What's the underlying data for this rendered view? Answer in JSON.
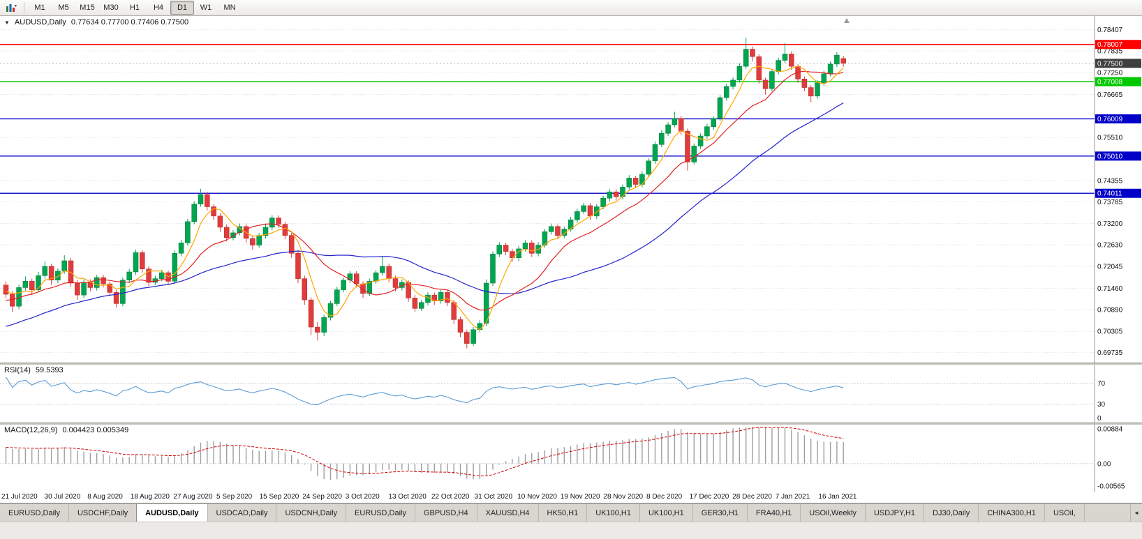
{
  "toolbar": {
    "timeframes": [
      "M1",
      "M5",
      "M15",
      "M30",
      "H1",
      "H4",
      "D1",
      "W1",
      "MN"
    ],
    "active": "D1"
  },
  "chart": {
    "marker": "▼",
    "symbol_label": "AUDUSD,Daily",
    "ohlc_text": "0.77634 0.77700 0.77406 0.77500"
  },
  "rsi": {
    "label": "RSI(14)",
    "value": "59.5393",
    "color": "#5B9BD5",
    "levels": [
      70,
      30
    ],
    "scale_labels": [
      "70",
      "30",
      "0"
    ]
  },
  "macd": {
    "label": "MACD(12,26,9)",
    "values": "0.004423 0.005349",
    "hist_color": "#9E9E9E",
    "signal_color": "#CC0000",
    "scale_labels": [
      "0.00884",
      "0.00",
      "-0.00565"
    ]
  },
  "dates": [
    "21 Jul 2020",
    "30 Jul 2020",
    "8 Aug 2020",
    "18 Aug 2020",
    "27 Aug 2020",
    "5 Sep 2020",
    "15 Sep 2020",
    "24 Sep 2020",
    "3 Oct 2020",
    "13 Oct 2020",
    "22 Oct 2020",
    "31 Oct 2020",
    "10 Nov 2020",
    "19 Nov 2020",
    "28 Nov 2020",
    "8 Dec 2020",
    "17 Dec 2020",
    "28 Dec 2020",
    "7 Jan 2021",
    "16 Jan 2021"
  ],
  "tabs": {
    "active_index": 2,
    "items": [
      "EURUSD,Daily",
      "USDCHF,Daily",
      "AUDUSD,Daily",
      "USDCAD,Daily",
      "USDCNH,Daily",
      "EURUSD,Daily",
      "GBPUSD,H4",
      "XAUUSD,H4",
      "HK50,H1",
      "UK100,H1",
      "UK100,H1",
      "GER30,H1",
      "FRA40,H1",
      "USOil,Weekly",
      "USDJPY,H1",
      "DJ30,Daily",
      "CHINA300,H1",
      "USOil,"
    ],
    "scroll_arrow": "◄"
  },
  "chart_data": {
    "type": "candlestick",
    "symbol": "AUDUSD",
    "timeframe": "Daily",
    "current_ohlc": {
      "open": "0.77634",
      "high": "0.77700",
      "low": "0.77406",
      "close": "0.77500"
    },
    "style": {
      "up": "#00A64F",
      "up_stroke": "#007338",
      "down": "#E03C3C",
      "down_stroke": "#B22222",
      "ma_fast": "#FFA500",
      "ma_mid": "#E02222",
      "ma_slow": "#2222CC",
      "current_box": "#3F3F3F"
    },
    "y_ticks": [
      "0.78407",
      "0.77835",
      "0.77250",
      "0.76665",
      "0.75510",
      "0.74355",
      "0.73785",
      "0.73200",
      "0.72630",
      "0.72045",
      "0.71460",
      "0.70890",
      "0.70305",
      "0.69735"
    ],
    "h_lines": [
      {
        "label": "0.78007",
        "value": 0.78007,
        "color": "#FF0000"
      },
      {
        "label": "0.77008",
        "value": 0.77008,
        "color": "#00C800"
      },
      {
        "label": "0.76009",
        "value": 0.76009,
        "color": "#0000C8"
      },
      {
        "label": "0.75010",
        "value": 0.7501,
        "color": "#0000C8"
      },
      {
        "label": "0.74011",
        "value": 0.74011,
        "color": "#0000C8"
      }
    ],
    "current_price": {
      "label": "0.77500",
      "value": 0.775
    },
    "candles": [
      [
        0.7155,
        0.7165,
        0.712,
        0.713
      ],
      [
        0.713,
        0.7138,
        0.7082,
        0.7098
      ],
      [
        0.7098,
        0.7156,
        0.709,
        0.7148
      ],
      [
        0.7148,
        0.7178,
        0.714,
        0.7165
      ],
      [
        0.7165,
        0.7172,
        0.7128,
        0.7142
      ],
      [
        0.7142,
        0.719,
        0.7135,
        0.718
      ],
      [
        0.718,
        0.7218,
        0.7172,
        0.7205
      ],
      [
        0.7205,
        0.7212,
        0.7155,
        0.7168
      ],
      [
        0.7168,
        0.72,
        0.716,
        0.7192
      ],
      [
        0.7192,
        0.7235,
        0.7185,
        0.722
      ],
      [
        0.722,
        0.7228,
        0.715,
        0.716
      ],
      [
        0.716,
        0.7168,
        0.7115,
        0.7128
      ],
      [
        0.7128,
        0.717,
        0.712,
        0.7162
      ],
      [
        0.7162,
        0.717,
        0.7138,
        0.7148
      ],
      [
        0.7148,
        0.7182,
        0.714,
        0.7175
      ],
      [
        0.7175,
        0.7182,
        0.7148,
        0.7158
      ],
      [
        0.7158,
        0.7165,
        0.7125,
        0.7135
      ],
      [
        0.7135,
        0.7142,
        0.7095,
        0.7105
      ],
      [
        0.7105,
        0.7175,
        0.7098,
        0.7168
      ],
      [
        0.7168,
        0.7198,
        0.716,
        0.719
      ],
      [
        0.719,
        0.725,
        0.7182,
        0.7242
      ],
      [
        0.7242,
        0.7248,
        0.7188,
        0.7198
      ],
      [
        0.7198,
        0.7205,
        0.7152,
        0.7162
      ],
      [
        0.7162,
        0.718,
        0.7155,
        0.7172
      ],
      [
        0.7172,
        0.7196,
        0.7165,
        0.7188
      ],
      [
        0.7188,
        0.7194,
        0.7155,
        0.7165
      ],
      [
        0.7165,
        0.7248,
        0.7158,
        0.724
      ],
      [
        0.724,
        0.7276,
        0.7232,
        0.7268
      ],
      [
        0.7268,
        0.7332,
        0.726,
        0.7325
      ],
      [
        0.7325,
        0.738,
        0.7318,
        0.7372
      ],
      [
        0.7372,
        0.7413,
        0.7365,
        0.7398
      ],
      [
        0.7398,
        0.7405,
        0.7355,
        0.7365
      ],
      [
        0.7365,
        0.7372,
        0.733,
        0.734
      ],
      [
        0.734,
        0.7348,
        0.7298,
        0.731
      ],
      [
        0.731,
        0.7318,
        0.7272,
        0.7282
      ],
      [
        0.7282,
        0.7302,
        0.7275,
        0.7295
      ],
      [
        0.7295,
        0.732,
        0.7288,
        0.7312
      ],
      [
        0.7312,
        0.7318,
        0.7268,
        0.728
      ],
      [
        0.728,
        0.7288,
        0.725,
        0.7262
      ],
      [
        0.7262,
        0.7295,
        0.7255,
        0.7288
      ],
      [
        0.7288,
        0.7318,
        0.728,
        0.731
      ],
      [
        0.731,
        0.7342,
        0.7302,
        0.7335
      ],
      [
        0.7335,
        0.7342,
        0.7308,
        0.7318
      ],
      [
        0.7318,
        0.7325,
        0.7278,
        0.7288
      ],
      [
        0.7288,
        0.7295,
        0.7228,
        0.724
      ],
      [
        0.724,
        0.7248,
        0.716,
        0.7172
      ],
      [
        0.7172,
        0.718,
        0.7102,
        0.7115
      ],
      [
        0.7115,
        0.7122,
        0.702,
        0.7042
      ],
      [
        0.7042,
        0.7055,
        0.7006,
        0.7028
      ],
      [
        0.7028,
        0.7075,
        0.7018,
        0.7068
      ],
      [
        0.7068,
        0.7112,
        0.706,
        0.7105
      ],
      [
        0.7105,
        0.715,
        0.7098,
        0.7142
      ],
      [
        0.7142,
        0.7175,
        0.7135,
        0.7168
      ],
      [
        0.7168,
        0.7192,
        0.716,
        0.7185
      ],
      [
        0.7185,
        0.7192,
        0.7148,
        0.7158
      ],
      [
        0.7158,
        0.7165,
        0.712,
        0.7132
      ],
      [
        0.7132,
        0.7172,
        0.7125,
        0.7165
      ],
      [
        0.7165,
        0.7195,
        0.7158,
        0.7188
      ],
      [
        0.7188,
        0.7232,
        0.718,
        0.7205
      ],
      [
        0.7205,
        0.7212,
        0.7162,
        0.7172
      ],
      [
        0.7172,
        0.718,
        0.7138,
        0.7148
      ],
      [
        0.7148,
        0.717,
        0.714,
        0.7162
      ],
      [
        0.7162,
        0.7168,
        0.711,
        0.712
      ],
      [
        0.712,
        0.7128,
        0.7082,
        0.7092
      ],
      [
        0.7092,
        0.7115,
        0.7085,
        0.7108
      ],
      [
        0.7108,
        0.7135,
        0.71,
        0.7128
      ],
      [
        0.7128,
        0.7135,
        0.7102,
        0.7112
      ],
      [
        0.7112,
        0.7142,
        0.7105,
        0.7135
      ],
      [
        0.7135,
        0.7142,
        0.7098,
        0.7108
      ],
      [
        0.7108,
        0.7115,
        0.705,
        0.7062
      ],
      [
        0.7062,
        0.707,
        0.7015,
        0.7028
      ],
      [
        0.7028,
        0.7035,
        0.6985,
        0.6998
      ],
      [
        0.6998,
        0.7042,
        0.6991,
        0.7035
      ],
      [
        0.7035,
        0.706,
        0.7028,
        0.7052
      ],
      [
        0.7052,
        0.717,
        0.7045,
        0.716
      ],
      [
        0.716,
        0.7245,
        0.7152,
        0.7238
      ],
      [
        0.7238,
        0.727,
        0.723,
        0.7262
      ],
      [
        0.7262,
        0.7268,
        0.7235,
        0.7245
      ],
      [
        0.7245,
        0.7252,
        0.7218,
        0.7228
      ],
      [
        0.7228,
        0.726,
        0.722,
        0.7252
      ],
      [
        0.7252,
        0.7275,
        0.7245,
        0.7268
      ],
      [
        0.7268,
        0.7275,
        0.723,
        0.724
      ],
      [
        0.724,
        0.727,
        0.7232,
        0.7262
      ],
      [
        0.7262,
        0.7305,
        0.7255,
        0.7298
      ],
      [
        0.7298,
        0.732,
        0.729,
        0.7312
      ],
      [
        0.7312,
        0.7318,
        0.7278,
        0.7288
      ],
      [
        0.7288,
        0.7312,
        0.728,
        0.7305
      ],
      [
        0.7305,
        0.7338,
        0.7298,
        0.733
      ],
      [
        0.733,
        0.736,
        0.7322,
        0.7352
      ],
      [
        0.7352,
        0.7375,
        0.7345,
        0.7368
      ],
      [
        0.7368,
        0.7375,
        0.733,
        0.734
      ],
      [
        0.734,
        0.7372,
        0.7332,
        0.7365
      ],
      [
        0.7365,
        0.7395,
        0.7358,
        0.7388
      ],
      [
        0.7388,
        0.7412,
        0.738,
        0.7405
      ],
      [
        0.7405,
        0.7412,
        0.7382,
        0.7392
      ],
      [
        0.7392,
        0.7425,
        0.7385,
        0.7418
      ],
      [
        0.7418,
        0.745,
        0.741,
        0.7442
      ],
      [
        0.7442,
        0.7448,
        0.7415,
        0.7425
      ],
      [
        0.7425,
        0.746,
        0.7418,
        0.7452
      ],
      [
        0.7452,
        0.7495,
        0.7445,
        0.7488
      ],
      [
        0.7488,
        0.754,
        0.748,
        0.7532
      ],
      [
        0.7532,
        0.757,
        0.7525,
        0.7562
      ],
      [
        0.7562,
        0.7592,
        0.7555,
        0.7585
      ],
      [
        0.7585,
        0.762,
        0.7578,
        0.7602
      ],
      [
        0.7602,
        0.7608,
        0.7558,
        0.7568
      ],
      [
        0.7568,
        0.7575,
        0.7462,
        0.7485
      ],
      [
        0.7485,
        0.7535,
        0.7478,
        0.7528
      ],
      [
        0.7528,
        0.7562,
        0.752,
        0.7555
      ],
      [
        0.7555,
        0.7588,
        0.7548,
        0.758
      ],
      [
        0.758,
        0.7608,
        0.7572,
        0.7602
      ],
      [
        0.7602,
        0.7665,
        0.7595,
        0.7658
      ],
      [
        0.7658,
        0.7695,
        0.765,
        0.7688
      ],
      [
        0.7688,
        0.7712,
        0.768,
        0.7705
      ],
      [
        0.7705,
        0.775,
        0.7698,
        0.7742
      ],
      [
        0.7742,
        0.7819,
        0.7735,
        0.7788
      ],
      [
        0.7788,
        0.7795,
        0.7755,
        0.7768
      ],
      [
        0.7768,
        0.7775,
        0.7695,
        0.7705
      ],
      [
        0.7705,
        0.7712,
        0.7666,
        0.7682
      ],
      [
        0.7682,
        0.7735,
        0.7675,
        0.7728
      ],
      [
        0.7728,
        0.7765,
        0.772,
        0.7758
      ],
      [
        0.7758,
        0.7805,
        0.775,
        0.7775
      ],
      [
        0.7775,
        0.7782,
        0.7732,
        0.7742
      ],
      [
        0.7742,
        0.7748,
        0.7698,
        0.7708
      ],
      [
        0.7708,
        0.7715,
        0.7675,
        0.7685
      ],
      [
        0.7685,
        0.7692,
        0.7646,
        0.7662
      ],
      [
        0.7662,
        0.7705,
        0.7655,
        0.7698
      ],
      [
        0.7698,
        0.773,
        0.769,
        0.7722
      ],
      [
        0.7722,
        0.7755,
        0.7715,
        0.7748
      ],
      [
        0.7748,
        0.778,
        0.774,
        0.7772
      ],
      [
        0.7763,
        0.777,
        0.7741,
        0.775
      ]
    ]
  }
}
